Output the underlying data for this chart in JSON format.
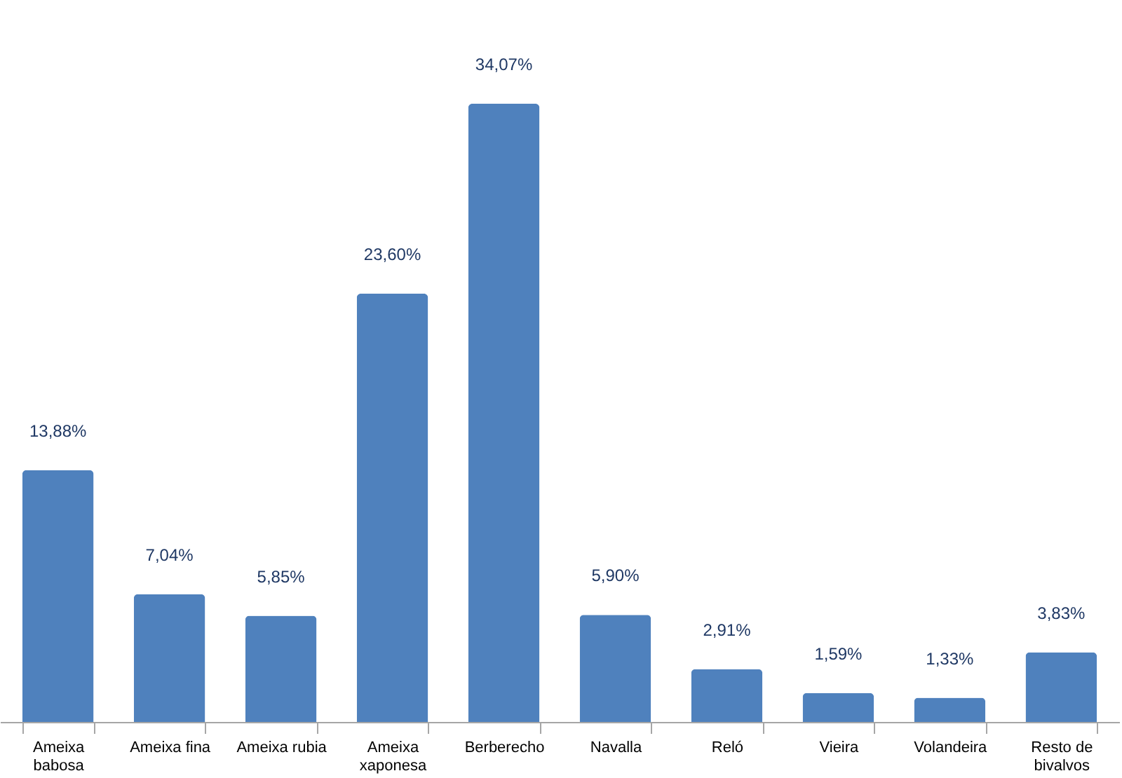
{
  "chart_data": {
    "type": "bar",
    "categories": [
      "Ameixa babosa",
      "Ameixa fina",
      "Ameixa rubia",
      "Ameixa xaponesa",
      "Berberecho",
      "Navalla",
      "Reló",
      "Vieira",
      "Volandeira",
      "Resto de bivalvos"
    ],
    "values": [
      13.88,
      7.04,
      5.85,
      23.6,
      34.07,
      5.9,
      2.91,
      1.59,
      1.33,
      3.83
    ],
    "value_labels": [
      "13,88%",
      "7,04%",
      "5,85%",
      "23,60%",
      "34,07%",
      "5,90%",
      "2,91%",
      "1,59%",
      "1,33%",
      "3,83%"
    ],
    "color": "#4f81bd"
  }
}
